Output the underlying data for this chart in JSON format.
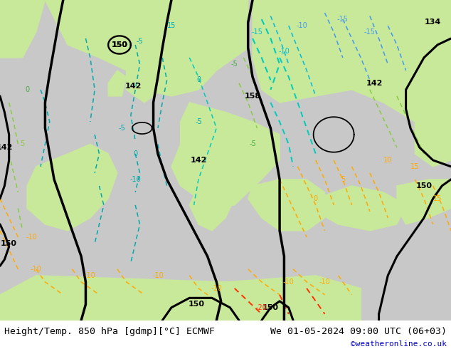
{
  "title_left": "Height/Temp. 850 hPa [gdmp][°C] ECMWF",
  "title_right": "We 01-05-2024 09:00 UTC (06+03)",
  "watermark": "©weatheronline.co.uk",
  "fig_width": 6.34,
  "fig_height": 4.9,
  "dpi": 100,
  "title_fontsize": 9.5,
  "watermark_color": "#0000cc",
  "watermark_fontsize": 8,
  "bg_sea": "#c8c8c8",
  "bg_land": "#c8e89a",
  "bg_white": "#ffffff"
}
